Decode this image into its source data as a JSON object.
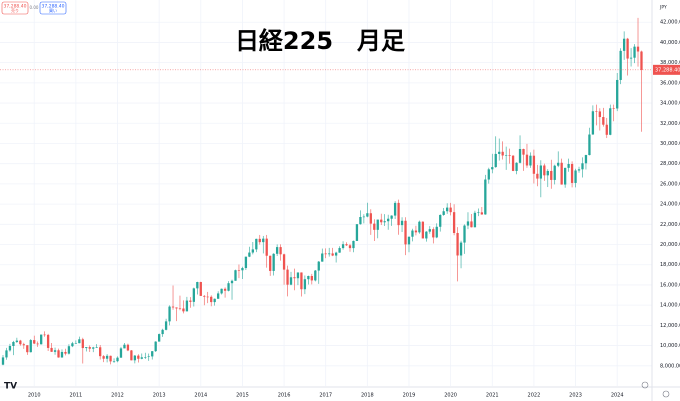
{
  "chart_data": {
    "type": "candlestick",
    "title": "日経225　月足",
    "categories": [
      null,
      null,
      null,
      null,
      null,
      null,
      null,
      null,
      null,
      "2010",
      null,
      null,
      null,
      null,
      null,
      null,
      null,
      null,
      null,
      null,
      null,
      "2011",
      null,
      null,
      null,
      null,
      null,
      null,
      null,
      null,
      null,
      null,
      null,
      "2012",
      null,
      null,
      null,
      null,
      null,
      null,
      null,
      null,
      null,
      null,
      null,
      "2013",
      null,
      null,
      null,
      null,
      null,
      null,
      null,
      null,
      null,
      null,
      null,
      "2014",
      null,
      null,
      null,
      null,
      null,
      null,
      null,
      null,
      null,
      null,
      null,
      "2015",
      null,
      null,
      null,
      null,
      null,
      null,
      null,
      null,
      null,
      null,
      null,
      "2016",
      null,
      null,
      null,
      null,
      null,
      null,
      null,
      null,
      null,
      null,
      null,
      "2017",
      null,
      null,
      null,
      null,
      null,
      null,
      null,
      null,
      null,
      null,
      null,
      "2018",
      null,
      null,
      null,
      null,
      null,
      null,
      null,
      null,
      null,
      null,
      null,
      "2019",
      null,
      null,
      null,
      null,
      null,
      null,
      null,
      null,
      null,
      null,
      null,
      "2020",
      null,
      null,
      null,
      null,
      null,
      null,
      null,
      null,
      null,
      null,
      null,
      "2021",
      null,
      null,
      null,
      null,
      null,
      null,
      null,
      null,
      null,
      null,
      null,
      "2022",
      null,
      null,
      null,
      null,
      null,
      null,
      null,
      null,
      null,
      null,
      null,
      "2023",
      null,
      null,
      null,
      null,
      null,
      null,
      null,
      null,
      null,
      null,
      null,
      "2024",
      null,
      null,
      null,
      null,
      null,
      null,
      null
    ],
    "open": [
      8110,
      8828,
      9523,
      9958,
      10357,
      10493,
      10133,
      10034,
      9345,
      10546,
      10198,
      10126,
      11089,
      11057,
      9768,
      9382,
      9537,
      8824,
      9369,
      9202,
      9937,
      10228,
      10237,
      10624,
      9755,
      9849,
      9693,
      9816,
      9833,
      8955,
      8700,
      8988,
      8434,
      8455,
      8802,
      9723,
      10083,
      9520,
      8542,
      9006,
      8695,
      8839,
      8870,
      8928,
      9446,
      10395,
      11138,
      11559,
      12397,
      13860,
      13774,
      13677,
      13668,
      13388,
      14455,
      14327,
      15662,
      16291,
      14914,
      14841,
      14828,
      14304,
      14632,
      15162,
      15621,
      15425,
      16173,
      16414,
      17459,
      17451,
      17674,
      18797,
      19207,
      19520,
      20563,
      20236,
      20585,
      18890,
      17388,
      19083,
      19747,
      19034,
      17518,
      16027,
      16759,
      16666,
      17235,
      15576,
      16569,
      16887,
      16450,
      17425,
      18308,
      19114,
      19041,
      19119,
      18909,
      19197,
      19651,
      20033,
      19925,
      19646,
      20356,
      22012,
      22725,
      22765,
      23098,
      22068,
      21454,
      22468,
      22202,
      22305,
      22554,
      22865,
      24120,
      21920,
      22351,
      20015,
      20773,
      21385,
      21206,
      22259,
      20601,
      21276,
      21522,
      20704,
      21756,
      22927,
      23294,
      23657,
      23205,
      21143,
      18917,
      20194,
      21878,
      22288,
      21710,
      23140,
      23185,
      22977,
      26434,
      27444,
      27663,
      28966,
      29179,
      28813,
      28860,
      28792,
      27284,
      28090,
      29453,
      28893,
      27822,
      28792,
      27002,
      26527,
      27821,
      26848,
      27280,
      26393,
      27802,
      28092,
      25937,
      27587,
      27969,
      26095,
      27327,
      27446,
      28041,
      28856,
      30888,
      33189,
      33172,
      32619,
      31858,
      30859,
      33487,
      33464,
      36287,
      39166,
      40369,
      38406,
      38488,
      39583,
      39102
    ],
    "high": [
      9070,
      9770,
      10170,
      10460,
      10770,
      10560,
      10280,
      10040,
      10640,
      10980,
      10400,
      11100,
      11410,
      11160,
      10250,
      9800,
      9700,
      9630,
      9690,
      10130,
      10370,
      10520,
      10890,
      10770,
      9850,
      10020,
      9880,
      10140,
      10060,
      9050,
      9150,
      9000,
      8730,
      8930,
      9870,
      10260,
      10190,
      9560,
      9070,
      9140,
      9220,
      9290,
      9210,
      9460,
      10430,
      11190,
      11660,
      12650,
      13980,
      15940,
      13780,
      14950,
      14470,
      14820,
      14800,
      15730,
      16320,
      16320,
      15000,
      15310,
      14970,
      14660,
      15380,
      15650,
      15760,
      16380,
      16530,
      17520,
      18030,
      17800,
      18800,
      19780,
      20250,
      20570,
      20950,
      20850,
      20950,
      18900,
      19140,
      20010,
      20010,
      19100,
      17910,
      17290,
      17610,
      17250,
      17250,
      16940,
      16920,
      17100,
      17480,
      18370,
      19600,
      19620,
      19670,
      19670,
      19290,
      19830,
      20320,
      20230,
      20080,
      20400,
      22020,
      23380,
      23000,
      24130,
      23490,
      22500,
      22470,
      23050,
      23010,
      22950,
      22900,
      24290,
      24450,
      22700,
      22700,
      20800,
      21560,
      21860,
      22360,
      22310,
      21330,
      21820,
      21710,
      22100,
      22990,
      23610,
      24090,
      24120,
      23990,
      21720,
      20370,
      22000,
      23190,
      23020,
      23340,
      23560,
      23720,
      26890,
      27600,
      28980,
      30710,
      30490,
      30210,
      29690,
      29490,
      28850,
      28140,
      30800,
      29490,
      29960,
      29120,
      29390,
      27880,
      28340,
      28010,
      27460,
      28390,
      27900,
      29220,
      28500,
      27600,
      28500,
      28230,
      27500,
      27700,
      28620,
      28880,
      31560,
      33770,
      33850,
      33490,
      33530,
      32530,
      33850,
      33850,
      36980,
      39430,
      41090,
      40450,
      39440,
      39830,
      42430,
      39190
    ],
    "low": [
      8050,
      8600,
      9400,
      9050,
      10260,
      9990,
      9670,
      9080,
      9320,
      10150,
      9870,
      10110,
      10880,
      9460,
      9380,
      9090,
      8800,
      8800,
      9030,
      9120,
      9850,
      10200,
      10230,
      8230,
      9420,
      9370,
      9350,
      9780,
      8620,
      8360,
      8340,
      8140,
      8290,
      8350,
      8800,
      9720,
      9450,
      8540,
      8240,
      8330,
      8650,
      8680,
      8490,
      8620,
      9380,
      10390,
      10860,
      11500,
      12000,
      13550,
      12420,
      13500,
      13190,
      13370,
      13750,
      13870,
      15060,
      14910,
      13990,
      14200,
      13890,
      13960,
      14630,
      15060,
      14750,
      15370,
      14530,
      16410,
      16670,
      16590,
      17480,
      18750,
      19030,
      19250,
      19990,
      19120,
      17710,
      16900,
      16930,
      18870,
      18410,
      16020,
      14870,
      15970,
      15470,
      15980,
      14860,
      15090,
      16040,
      16060,
      16360,
      16110,
      18300,
      18650,
      18800,
      18850,
      18220,
      19190,
      19500,
      19860,
      19280,
      19240,
      20350,
      21970,
      22100,
      22700,
      20950,
      20350,
      20620,
      21930,
      21830,
      21460,
      21850,
      22530,
      20970,
      21240,
      18950,
      19240,
      20310,
      20910,
      21070,
      20750,
      20290,
      21070,
      20110,
      20630,
      21280,
      22850,
      23040,
      22890,
      20920,
      16360,
      17650,
      19070,
      21530,
      21690,
      21690,
      22810,
      22950,
      22950,
      26030,
      27050,
      27600,
      28310,
      28420,
      27390,
      28010,
      27270,
      26950,
      28030,
      27290,
      27590,
      27590,
      26040,
      25770,
      24680,
      26300,
      25690,
      25520,
      25950,
      27660,
      25930,
      25620,
      27200,
      25660,
      25660,
      27100,
      26630,
      27430,
      28820,
      30870,
      31790,
      31280,
      31670,
      30540,
      30820,
      32200,
      33200,
      35880,
      38270,
      36730,
      37620,
      37950,
      37610,
      31160
    ],
    "close": [
      8828,
      9523,
      9958,
      10357,
      10493,
      10133,
      10034,
      9345,
      10546,
      10198,
      10126,
      11089,
      11057,
      9768,
      9382,
      9537,
      8824,
      9369,
      9202,
      9937,
      10228,
      10237,
      10624,
      9755,
      9849,
      9693,
      9816,
      9833,
      8955,
      8700,
      8988,
      8434,
      8455,
      8802,
      9723,
      10083,
      9520,
      8542,
      9006,
      8695,
      8839,
      8870,
      8928,
      9446,
      10395,
      11138,
      11559,
      12397,
      13860,
      13774,
      13677,
      13668,
      13388,
      14455,
      14327,
      15662,
      16291,
      14914,
      14841,
      14828,
      14304,
      14632,
      15162,
      15621,
      15425,
      16173,
      16414,
      17459,
      17451,
      17674,
      18797,
      19207,
      19520,
      20563,
      20236,
      20585,
      18890,
      17388,
      19083,
      19747,
      19034,
      17518,
      16027,
      16759,
      16666,
      17235,
      15576,
      16569,
      16887,
      16450,
      17425,
      18308,
      19114,
      19041,
      19119,
      18909,
      19197,
      19651,
      20033,
      19925,
      19646,
      20356,
      22012,
      22725,
      22765,
      23098,
      22068,
      21454,
      22468,
      22202,
      22305,
      22554,
      22865,
      24120,
      21920,
      22351,
      20015,
      20773,
      21385,
      21206,
      22259,
      20601,
      21276,
      21522,
      20704,
      21756,
      22927,
      23294,
      23657,
      23205,
      21143,
      18917,
      20194,
      21878,
      22288,
      21710,
      23140,
      23185,
      22977,
      26434,
      27444,
      27663,
      28966,
      29179,
      28813,
      28860,
      28792,
      27284,
      28090,
      29453,
      28893,
      27822,
      28792,
      27002,
      26527,
      27821,
      26848,
      27280,
      26393,
      27802,
      28092,
      25937,
      27587,
      27969,
      26095,
      27327,
      27446,
      28041,
      28856,
      30888,
      33189,
      33172,
      32619,
      31858,
      30859,
      33487,
      33464,
      36287,
      39166,
      40369,
      38406,
      38488,
      39583,
      39102,
      37288
    ],
    "up_color": "#26a69a",
    "down_color": "#ef5350",
    "grid": true,
    "ylim": [
      6000,
      44200
    ],
    "yticks": [
      {
        "value": 8000,
        "label": "8,000.00"
      },
      {
        "value": 10000,
        "label": "10,000.00"
      },
      {
        "value": 12000,
        "label": "12,000.00"
      },
      {
        "value": 14000,
        "label": "14,000.00"
      },
      {
        "value": 16000,
        "label": "16,000.00"
      },
      {
        "value": 18000,
        "label": "18,000.00"
      },
      {
        "value": 20000,
        "label": "20,000.00"
      },
      {
        "value": 22000,
        "label": "22,000.00"
      },
      {
        "value": 24000,
        "label": "24,000.00"
      },
      {
        "value": 26000,
        "label": "26,000.00"
      },
      {
        "value": 28000,
        "label": "28,000.00"
      },
      {
        "value": 30000,
        "label": "30,000.00"
      },
      {
        "value": 32000,
        "label": "32,000.00"
      },
      {
        "value": 34000,
        "label": "34,000.00"
      },
      {
        "value": 36000,
        "label": "36,000.00"
      },
      {
        "value": 38000,
        "label": "38,000.00"
      },
      {
        "value": 40000,
        "label": "40,000.00"
      },
      {
        "value": 42000,
        "label": "42,000.00"
      }
    ],
    "currency": "JPY",
    "last_price": "37,288.40"
  },
  "toolbar": {
    "sell_price": "37,288.40",
    "sell_label": "売り",
    "spread": "0.00",
    "buy_price": "37,288.40",
    "buy_label": "買い"
  }
}
